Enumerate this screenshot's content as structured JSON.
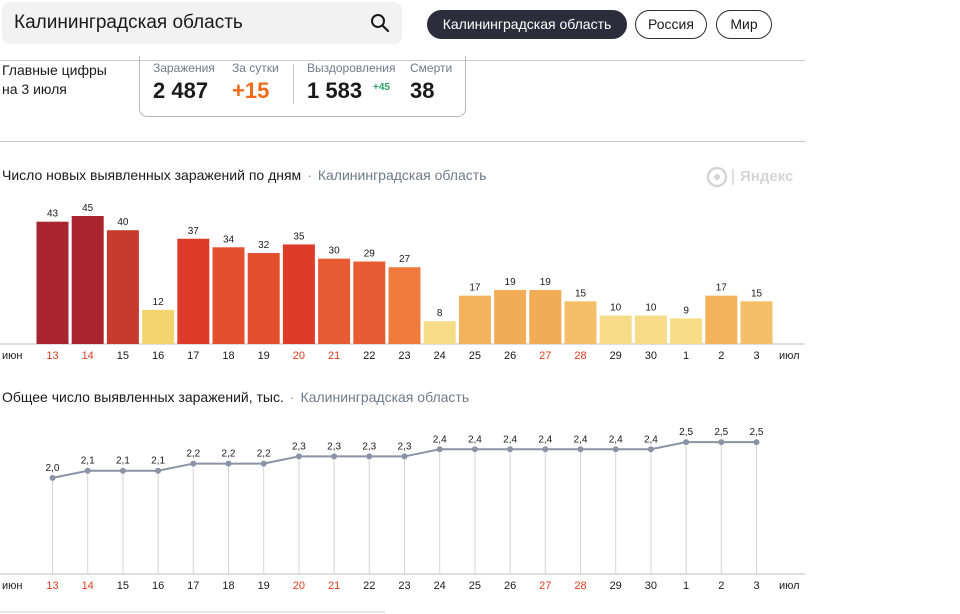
{
  "search": {
    "value": "Калининградская область",
    "icon": "search-icon"
  },
  "tabs": [
    {
      "label": "Калининградская область",
      "active": true
    },
    {
      "label": "Россия",
      "active": false
    },
    {
      "label": "Мир",
      "active": false
    }
  ],
  "summary": {
    "title_line1": "Главные цифры",
    "title_line2": "на 3 июля",
    "cases_label": "Заражения",
    "cases_value": "2 487",
    "daily_label": "За сутки",
    "daily_value": "+15",
    "recovered_label": "Выздоровления",
    "recovered_value": "1 583",
    "recovered_delta": "+45",
    "deaths_label": "Смерти",
    "deaths_value": "38"
  },
  "brand": {
    "text": "Яндекс"
  },
  "colors": {
    "dark": "#2b2d3a",
    "accent_orange": "#f06a1a",
    "accent_green": "#2aa366",
    "weekend": "#e03a1e",
    "line": "#8a93a5"
  },
  "chart_data": [
    {
      "type": "bar",
      "title": "Число новых выявленных заражений по дням",
      "subtitle": "Калининградская область",
      "x_start_label": "июн",
      "x_end_label": "июл",
      "categories": [
        "13",
        "14",
        "15",
        "16",
        "17",
        "18",
        "19",
        "20",
        "21",
        "22",
        "23",
        "24",
        "25",
        "26",
        "27",
        "28",
        "29",
        "30",
        "1",
        "2",
        "3"
      ],
      "values": [
        43,
        45,
        40,
        12,
        37,
        34,
        32,
        35,
        30,
        29,
        27,
        8,
        17,
        19,
        19,
        15,
        10,
        10,
        9,
        17,
        15
      ],
      "bar_colors": [
        "#a8242e",
        "#a8242e",
        "#c83a2e",
        "#f5d36e",
        "#de3c28",
        "#e4502d",
        "#e4502d",
        "#de3c28",
        "#e85b32",
        "#e85b32",
        "#ee7a3e",
        "#f6dc86",
        "#f2b25c",
        "#f2ac58",
        "#f2ac58",
        "#f4bf66",
        "#f6dc86",
        "#f6dc86",
        "#f6dc86",
        "#f2b25c",
        "#f4bf66"
      ],
      "red_labels": [
        "13",
        "14",
        "20",
        "21",
        "27",
        "28"
      ],
      "ylim": [
        0,
        45
      ]
    },
    {
      "type": "line",
      "title": "Общее число выявленных заражений, тыс.",
      "subtitle": "Калининградская область",
      "x_start_label": "июн",
      "x_end_label": "июл",
      "categories": [
        "13",
        "14",
        "15",
        "16",
        "17",
        "18",
        "19",
        "20",
        "21",
        "22",
        "23",
        "24",
        "25",
        "26",
        "27",
        "28",
        "29",
        "30",
        "1",
        "2",
        "3"
      ],
      "values": [
        2.0,
        2.1,
        2.1,
        2.1,
        2.2,
        2.2,
        2.2,
        2.3,
        2.3,
        2.3,
        2.3,
        2.4,
        2.4,
        2.4,
        2.4,
        2.4,
        2.4,
        2.4,
        2.5,
        2.5,
        2.5
      ],
      "value_labels": [
        "2,0",
        "2,1",
        "2,1",
        "2,1",
        "2,2",
        "2,2",
        "2,2",
        "2,3",
        "2,3",
        "2,3",
        "2,3",
        "2,4",
        "2,4",
        "2,4",
        "2,4",
        "2,4",
        "2,4",
        "2,4",
        "2,5",
        "2,5",
        "2,5"
      ],
      "red_labels": [
        "13",
        "14",
        "20",
        "21",
        "27",
        "28"
      ],
      "ylim": [
        1.9,
        2.6
      ]
    }
  ]
}
